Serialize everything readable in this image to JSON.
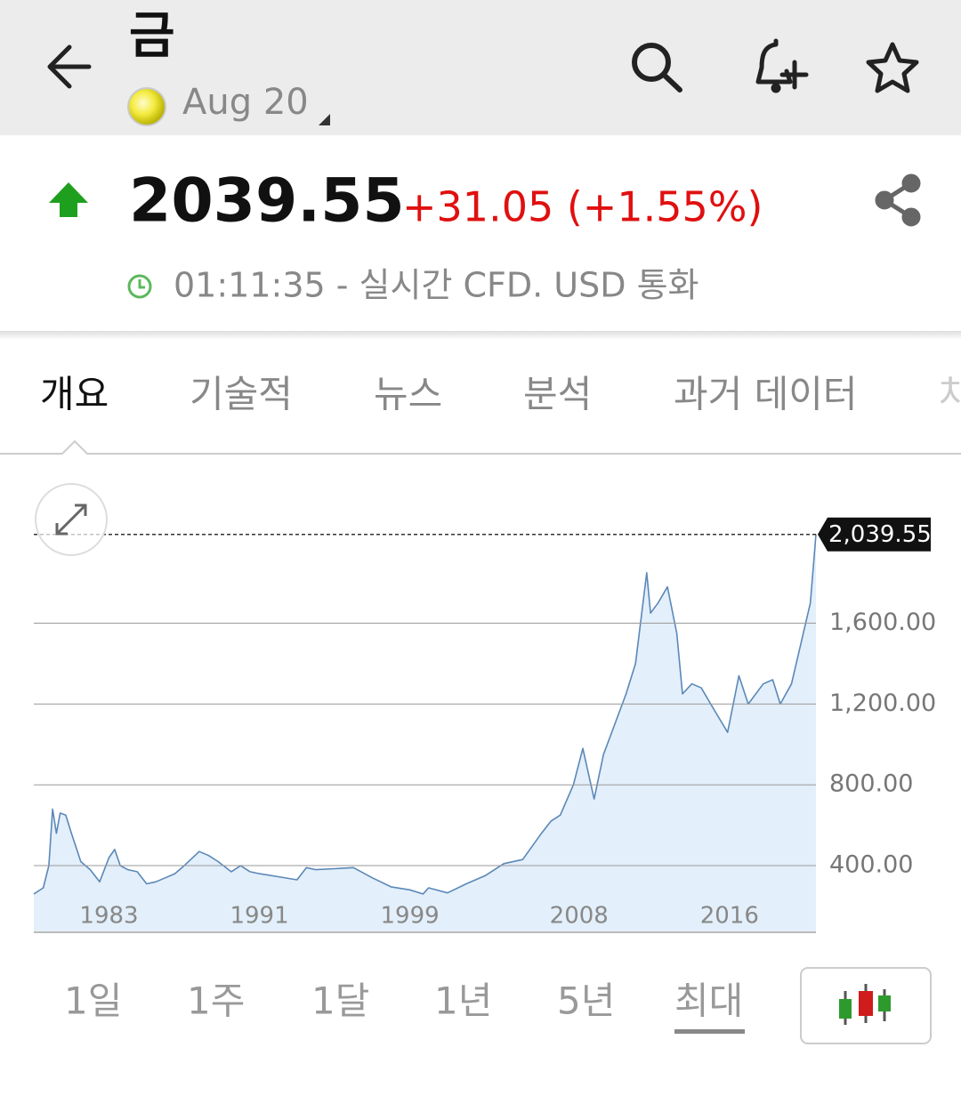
{
  "header": {
    "title": "금",
    "contract": "Aug 20"
  },
  "quote": {
    "price": "2039.55",
    "change": "+31.05 (+1.55%)",
    "time": "01:11:35 - 실시간 CFD. USD 통화"
  },
  "tabs": [
    "개요",
    "기술적",
    "뉴스",
    "분석",
    "과거 데이터",
    "차"
  ],
  "ranges": [
    "1일",
    "1주",
    "1달",
    "1년",
    "5년",
    "최대"
  ],
  "chart_data": {
    "type": "area",
    "x": [
      1979.0,
      1979.5,
      1979.8,
      1980.0,
      1980.2,
      1980.4,
      1980.7,
      1981.0,
      1981.5,
      1982.0,
      1982.5,
      1983.0,
      1983.3,
      1983.6,
      1984.0,
      1984.5,
      1985.0,
      1985.5,
      1986.0,
      1986.5,
      1987.0,
      1987.8,
      1988.3,
      1988.8,
      1989.5,
      1990.0,
      1990.5,
      1991.0,
      1992.0,
      1993.0,
      1993.5,
      1994.0,
      1995.0,
      1996.0,
      1997.0,
      1998.0,
      1999.0,
      1999.7,
      2000.0,
      2001.0,
      2002.0,
      2003.0,
      2004.0,
      2005.0,
      2006.0,
      2006.5,
      2007.0,
      2007.7,
      2008.2,
      2008.8,
      2009.3,
      2009.9,
      2010.5,
      2011.0,
      2011.6,
      2011.8,
      2012.2,
      2012.7,
      2013.2,
      2013.5,
      2014.0,
      2014.5,
      2015.0,
      2015.9,
      2016.5,
      2017.0,
      2017.8,
      2018.3,
      2018.7,
      2019.3,
      2019.8,
      2020.3,
      2020.6
    ],
    "series": [
      {
        "name": "Gold",
        "color": "#5b88b8",
        "fill": "#e3effa",
        "values": [
          260,
          290,
          400,
          680,
          560,
          660,
          650,
          560,
          420,
          380,
          320,
          440,
          480,
          400,
          380,
          370,
          310,
          320,
          340,
          360,
          400,
          470,
          450,
          420,
          370,
          400,
          370,
          360,
          345,
          330,
          390,
          380,
          385,
          390,
          340,
          295,
          280,
          260,
          290,
          265,
          310,
          350,
          410,
          430,
          560,
          620,
          650,
          800,
          980,
          730,
          950,
          1100,
          1250,
          1400,
          1850,
          1650,
          1700,
          1780,
          1550,
          1250,
          1300,
          1280,
          1200,
          1060,
          1340,
          1200,
          1300,
          1320,
          1200,
          1300,
          1500,
          1700,
          2039.55
        ]
      }
    ],
    "xlim": [
      1979,
      2020.6
    ],
    "xticks": [
      1983,
      1991,
      1999,
      2008,
      2016
    ],
    "ylim": [
      70,
      2100
    ],
    "yticks": [
      {
        "value": 400,
        "label": "400.00"
      },
      {
        "value": 800,
        "label": "800.00"
      },
      {
        "value": 1200,
        "label": "1,200.00"
      },
      {
        "value": 1600,
        "label": "1,600.00"
      }
    ],
    "last_value": {
      "value": 2039.55,
      "label": "2,039.55"
    },
    "grid": true
  }
}
